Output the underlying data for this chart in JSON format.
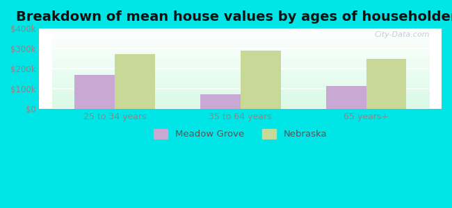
{
  "title": "Breakdown of mean house values by ages of householders",
  "categories": [
    "25 to 34 years",
    "35 to 64 years",
    "65 years+"
  ],
  "meadow_grove": [
    170000,
    72000,
    112000
  ],
  "nebraska": [
    272000,
    288000,
    247000
  ],
  "meadow_grove_color": "#c9a8d4",
  "nebraska_color": "#c8d896",
  "ylim": [
    0,
    400000
  ],
  "yticks": [
    0,
    100000,
    200000,
    300000,
    400000
  ],
  "ytick_labels": [
    "$0",
    "$100k",
    "$200k",
    "$300k",
    "$400k"
  ],
  "outer_bg_color": "#00e5e5",
  "title_fontsize": 14,
  "legend_labels": [
    "Meadow Grove",
    "Nebraska"
  ],
  "bar_width": 0.32,
  "watermark": "City-Data.com"
}
